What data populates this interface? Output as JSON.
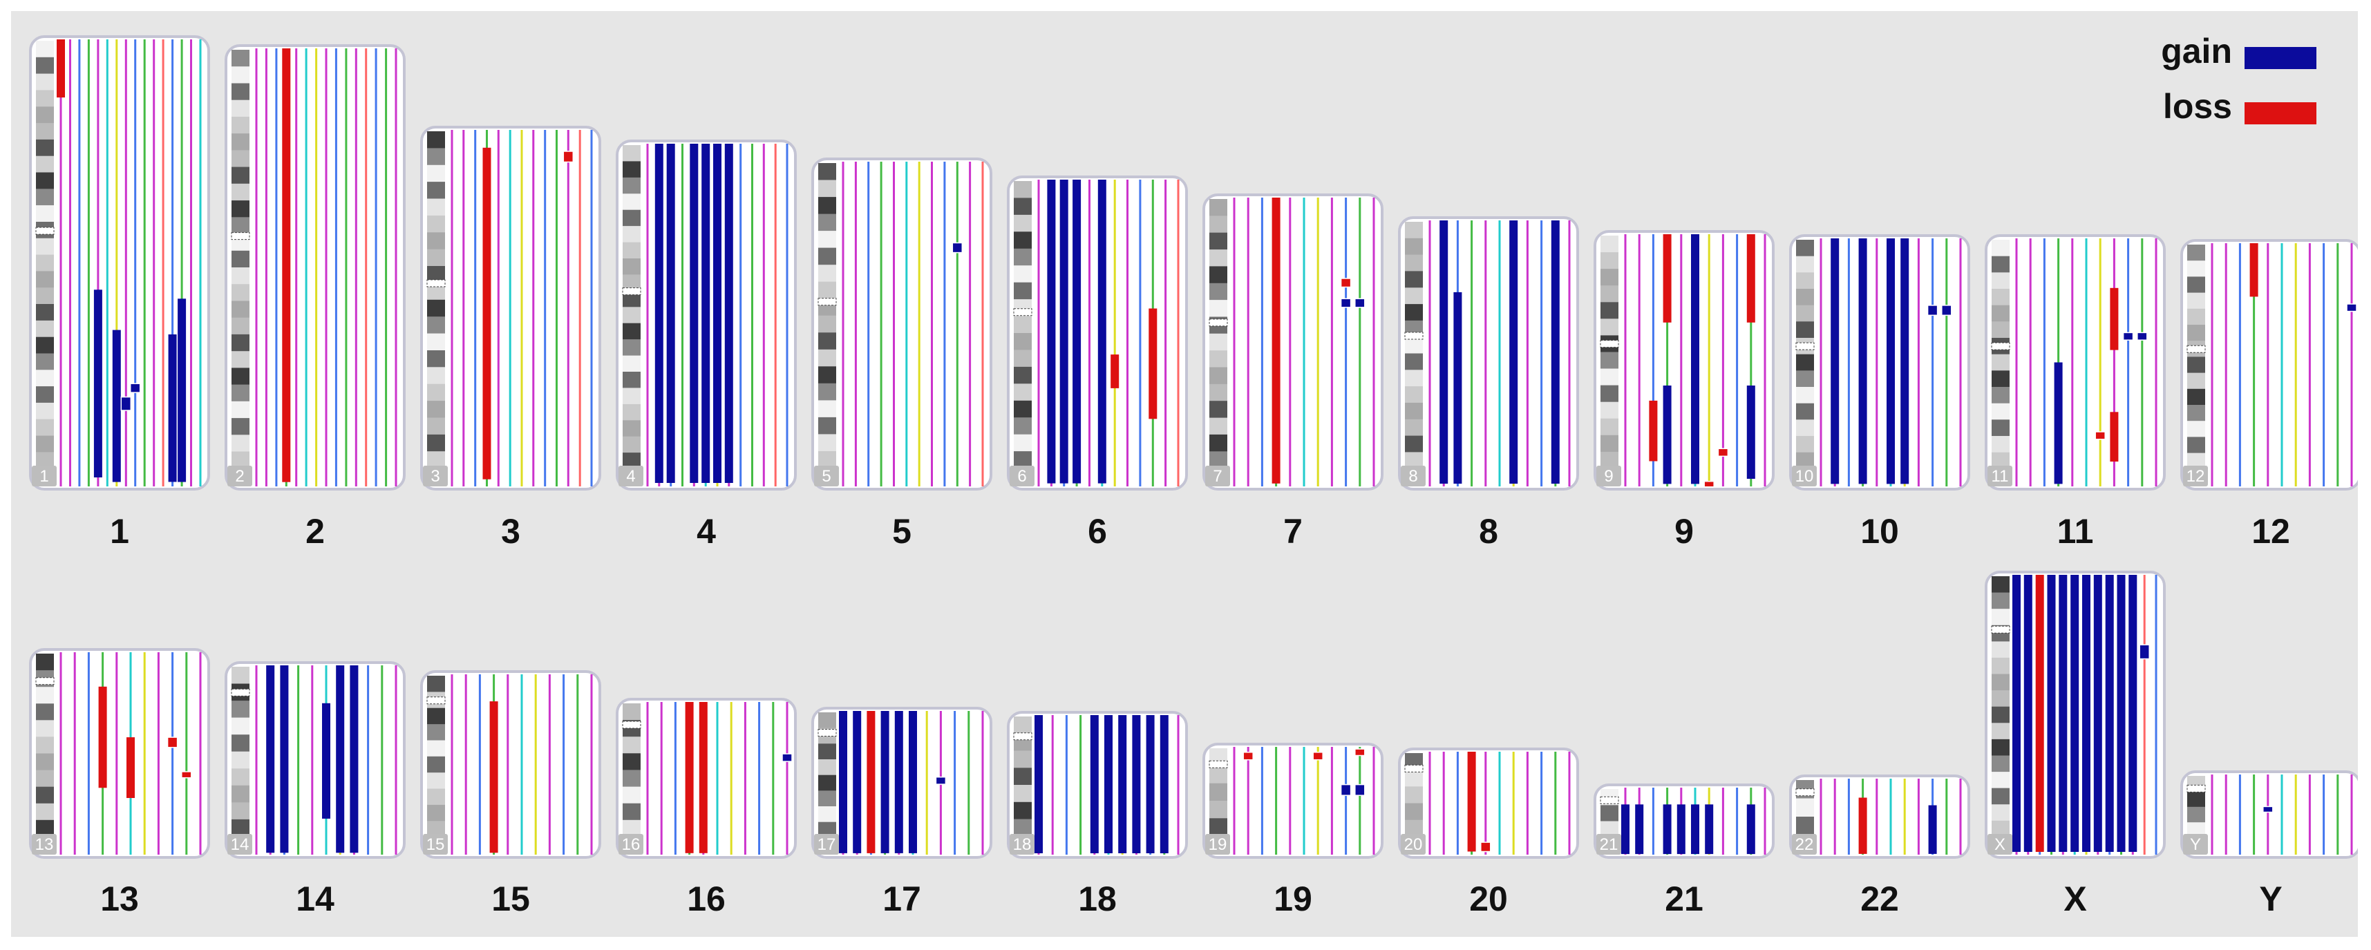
{
  "chart_data": {
    "type": "karyogram",
    "title": "",
    "legend": [
      {
        "name": "gain",
        "color": "#0b0b9c"
      },
      {
        "name": "loss",
        "color": "#dd1111"
      }
    ],
    "track_colors": [
      "#cc33cc",
      "#cc33cc",
      "#4477ee",
      "#44bb44",
      "#cc33cc",
      "#22cccc",
      "#dddd22",
      "#cc33cc",
      "#4477ee",
      "#44bb44",
      "#cc33cc",
      "#ff6666",
      "#4477ee",
      "#44bb44",
      "#cc33cc",
      "#22cccc",
      "#cc33cc",
      "#44bb44"
    ],
    "chromosomes": [
      {
        "name": "1",
        "size": 1.0,
        "tracks": 16,
        "segments": [
          [
            "loss",
            0,
            0.0,
            0.13,
            0.0
          ],
          [
            "gain",
            4,
            0.56,
            0.98,
            0.0
          ],
          [
            "gain",
            6,
            0.65,
            0.99,
            0.0
          ],
          [
            "gain",
            7,
            0.8,
            0.83,
            1.0
          ],
          [
            "gain",
            8,
            0.77,
            0.79,
            1.0
          ],
          [
            "gain",
            12,
            0.66,
            0.99,
            0.0
          ],
          [
            "gain",
            13,
            0.58,
            0.99,
            0.0
          ]
        ]
      },
      {
        "name": "2",
        "size": 0.98,
        "tracks": 15,
        "segments": [
          [
            "loss",
            3,
            0.0,
            0.99,
            0.0
          ]
        ]
      },
      {
        "name": "3",
        "size": 0.8,
        "tracks": 13,
        "segments": [
          [
            "loss",
            3,
            0.05,
            0.98,
            0.0
          ],
          [
            "loss",
            10,
            0.06,
            0.09,
            1.0
          ]
        ]
      },
      {
        "name": "4",
        "size": 0.77,
        "tracks": 13,
        "segments": [
          [
            "gain",
            1,
            0.0,
            0.99,
            0.0
          ],
          [
            "gain",
            2,
            0.0,
            0.99,
            0.0
          ],
          [
            "gain",
            4,
            0.0,
            0.99,
            0.0
          ],
          [
            "gain",
            5,
            0.0,
            0.99,
            0.0
          ],
          [
            "gain",
            6,
            0.0,
            0.99,
            0.0
          ],
          [
            "gain",
            7,
            0.0,
            0.99,
            0.0
          ]
        ]
      },
      {
        "name": "5",
        "size": 0.73,
        "tracks": 12,
        "segments": [
          [
            "gain",
            9,
            0.25,
            0.28,
            1.0
          ]
        ]
      },
      {
        "name": "6",
        "size": 0.69,
        "tracks": 12,
        "segments": [
          [
            "gain",
            1,
            0.0,
            0.99,
            0.0
          ],
          [
            "gain",
            2,
            0.0,
            0.99,
            0.0
          ],
          [
            "gain",
            3,
            0.0,
            0.99,
            0.0
          ],
          [
            "gain",
            5,
            0.0,
            0.99,
            0.0
          ],
          [
            "loss",
            6,
            0.57,
            0.68,
            0.0
          ],
          [
            "loss",
            9,
            0.42,
            0.78,
            0.0
          ]
        ]
      },
      {
        "name": "7",
        "size": 0.65,
        "tracks": 11,
        "segments": [
          [
            "loss",
            3,
            0.0,
            0.99,
            0.0
          ],
          [
            "loss",
            8,
            0.28,
            0.31,
            1.0
          ],
          [
            "gain",
            8,
            0.35,
            0.38,
            1.0
          ],
          [
            "gain",
            9,
            0.35,
            0.38,
            1.0
          ]
        ]
      },
      {
        "name": "8",
        "size": 0.6,
        "tracks": 11,
        "segments": [
          [
            "gain",
            1,
            0.0,
            0.99,
            0.0
          ],
          [
            "gain",
            2,
            0.27,
            0.99,
            0.0
          ],
          [
            "gain",
            6,
            0.0,
            0.99,
            0.0
          ],
          [
            "gain",
            9,
            0.0,
            0.99,
            0.0
          ]
        ]
      },
      {
        "name": "9",
        "size": 0.57,
        "tracks": 11,
        "segments": [
          [
            "loss",
            3,
            0.0,
            0.35,
            0.0
          ],
          [
            "loss",
            2,
            0.66,
            0.9,
            0.0
          ],
          [
            "gain",
            3,
            0.6,
            0.99,
            0.0
          ],
          [
            "loss",
            7,
            0.85,
            0.88,
            1.0
          ],
          [
            "gain",
            5,
            0.0,
            0.99,
            0.0
          ],
          [
            "loss",
            9,
            0.0,
            0.35,
            0.0
          ],
          [
            "gain",
            9,
            0.6,
            0.97,
            0.0
          ],
          [
            "loss",
            6,
            0.98,
            1.0,
            1.0
          ]
        ]
      },
      {
        "name": "10",
        "size": 0.56,
        "tracks": 11,
        "segments": [
          [
            "gain",
            1,
            0.0,
            0.99,
            0.0
          ],
          [
            "gain",
            3,
            0.0,
            0.99,
            0.0
          ],
          [
            "gain",
            5,
            0.0,
            0.99,
            0.0
          ],
          [
            "gain",
            6,
            0.0,
            0.99,
            0.0
          ],
          [
            "gain",
            8,
            0.27,
            0.31,
            1.0
          ],
          [
            "gain",
            9,
            0.27,
            0.31,
            1.0
          ]
        ]
      },
      {
        "name": "11",
        "size": 0.56,
        "tracks": 11,
        "segments": [
          [
            "gain",
            3,
            0.5,
            0.99,
            0.0
          ],
          [
            "loss",
            7,
            0.2,
            0.45,
            0.0
          ],
          [
            "loss",
            7,
            0.7,
            0.9,
            0.0
          ],
          [
            "loss",
            6,
            0.78,
            0.81,
            1.0
          ],
          [
            "gain",
            8,
            0.38,
            0.41,
            1.0
          ],
          [
            "gain",
            9,
            0.38,
            0.41,
            1.0
          ]
        ]
      },
      {
        "name": "12",
        "size": 0.55,
        "tracks": 11,
        "segments": [
          [
            "loss",
            3,
            0.0,
            0.22,
            0.0
          ],
          [
            "gain",
            10,
            0.25,
            0.28,
            1.0
          ]
        ]
      },
      {
        "name": "13",
        "size": 0.46,
        "tracks": 11,
        "segments": [
          [
            "loss",
            3,
            0.17,
            0.67,
            0.0
          ],
          [
            "loss",
            5,
            0.42,
            0.72,
            0.0
          ],
          [
            "loss",
            8,
            0.42,
            0.47,
            1.0
          ],
          [
            "loss",
            9,
            0.59,
            0.62,
            1.0
          ]
        ]
      },
      {
        "name": "14",
        "size": 0.43,
        "tracks": 11,
        "segments": [
          [
            "gain",
            1,
            0.0,
            0.99,
            0.0
          ],
          [
            "gain",
            2,
            0.0,
            0.99,
            0.0
          ],
          [
            "gain",
            5,
            0.2,
            0.81,
            0.0
          ],
          [
            "gain",
            6,
            0.0,
            0.99,
            0.0
          ],
          [
            "gain",
            7,
            0.0,
            0.99,
            0.0
          ]
        ]
      },
      {
        "name": "15",
        "size": 0.41,
        "tracks": 11,
        "segments": [
          [
            "loss",
            3,
            0.15,
            0.99,
            0.0
          ]
        ]
      },
      {
        "name": "16",
        "size": 0.35,
        "tracks": 11,
        "segments": [
          [
            "loss",
            3,
            0.0,
            0.99,
            0.0
          ],
          [
            "loss",
            4,
            0.0,
            0.99,
            0.0
          ],
          [
            "gain",
            10,
            0.34,
            0.39,
            1.0
          ]
        ]
      },
      {
        "name": "17",
        "size": 0.33,
        "tracks": 11,
        "segments": [
          [
            "gain",
            0,
            0.0,
            0.99,
            0.0
          ],
          [
            "gain",
            1,
            0.0,
            0.99,
            0.0
          ],
          [
            "loss",
            2,
            0.0,
            0.99,
            0.0
          ],
          [
            "gain",
            3,
            0.0,
            0.99,
            0.0
          ],
          [
            "gain",
            4,
            0.0,
            0.99,
            0.0
          ],
          [
            "gain",
            5,
            0.0,
            0.99,
            0.0
          ],
          [
            "gain",
            7,
            0.46,
            0.51,
            1.0
          ]
        ]
      },
      {
        "name": "18",
        "size": 0.32,
        "tracks": 11,
        "segments": [
          [
            "gain",
            0,
            0.0,
            0.99,
            0.0
          ],
          [
            "gain",
            4,
            0.0,
            0.99,
            0.0
          ],
          [
            "gain",
            5,
            0.0,
            0.99,
            0.0
          ],
          [
            "gain",
            6,
            0.0,
            0.99,
            0.0
          ],
          [
            "gain",
            7,
            0.0,
            0.99,
            0.0
          ],
          [
            "gain",
            8,
            0.0,
            0.99,
            0.0
          ],
          [
            "gain",
            9,
            0.0,
            0.99,
            0.0
          ]
        ]
      },
      {
        "name": "19",
        "size": 0.25,
        "tracks": 11,
        "segments": [
          [
            "loss",
            1,
            0.05,
            0.12,
            1.0
          ],
          [
            "loss",
            6,
            0.05,
            0.12,
            1.0
          ],
          [
            "gain",
            8,
            0.35,
            0.45,
            1.0
          ],
          [
            "gain",
            9,
            0.35,
            0.45,
            1.0
          ],
          [
            "loss",
            9,
            0.02,
            0.08,
            1.0
          ]
        ]
      },
      {
        "name": "20",
        "size": 0.24,
        "tracks": 11,
        "segments": [
          [
            "loss",
            3,
            0.0,
            0.97,
            0.0
          ],
          [
            "loss",
            4,
            0.88,
            0.97,
            1.0
          ]
        ]
      },
      {
        "name": "21",
        "size": 0.16,
        "tracks": 11,
        "segments": [
          [
            "gain",
            0,
            0.25,
            0.99,
            0.0
          ],
          [
            "gain",
            1,
            0.25,
            0.99,
            0.0
          ],
          [
            "gain",
            3,
            0.25,
            0.99,
            0.0
          ],
          [
            "gain",
            4,
            0.25,
            0.99,
            0.0
          ],
          [
            "gain",
            5,
            0.25,
            0.99,
            0.0
          ],
          [
            "gain",
            6,
            0.25,
            0.99,
            0.0
          ],
          [
            "gain",
            9,
            0.25,
            0.99,
            0.0
          ]
        ]
      },
      {
        "name": "22",
        "size": 0.18,
        "tracks": 11,
        "segments": [
          [
            "loss",
            3,
            0.25,
            0.99,
            0.0
          ],
          [
            "gain",
            8,
            0.35,
            0.99,
            0.0
          ]
        ]
      },
      {
        "name": "X",
        "size": 0.63,
        "tracks": 13,
        "segments": [
          [
            "gain",
            0,
            0.0,
            0.99,
            0.0
          ],
          [
            "gain",
            1,
            0.0,
            0.99,
            0.0
          ],
          [
            "loss",
            2,
            0.0,
            0.99,
            0.0
          ],
          [
            "gain",
            3,
            0.0,
            0.99,
            0.0
          ],
          [
            "gain",
            4,
            0.0,
            0.99,
            0.0
          ],
          [
            "gain",
            5,
            0.0,
            0.99,
            0.0
          ],
          [
            "gain",
            6,
            0.0,
            0.99,
            0.0
          ],
          [
            "gain",
            7,
            0.0,
            0.99,
            0.0
          ],
          [
            "gain",
            8,
            0.0,
            0.99,
            0.0
          ],
          [
            "gain",
            9,
            0.0,
            0.99,
            0.0
          ],
          [
            "gain",
            10,
            0.0,
            0.99,
            0.0
          ],
          [
            "gain",
            11,
            0.25,
            0.3,
            1.0
          ]
        ]
      },
      {
        "name": "Y",
        "size": 0.19,
        "tracks": 11,
        "segments": [
          [
            "gain",
            4,
            0.4,
            0.47,
            1.0
          ]
        ]
      }
    ]
  }
}
